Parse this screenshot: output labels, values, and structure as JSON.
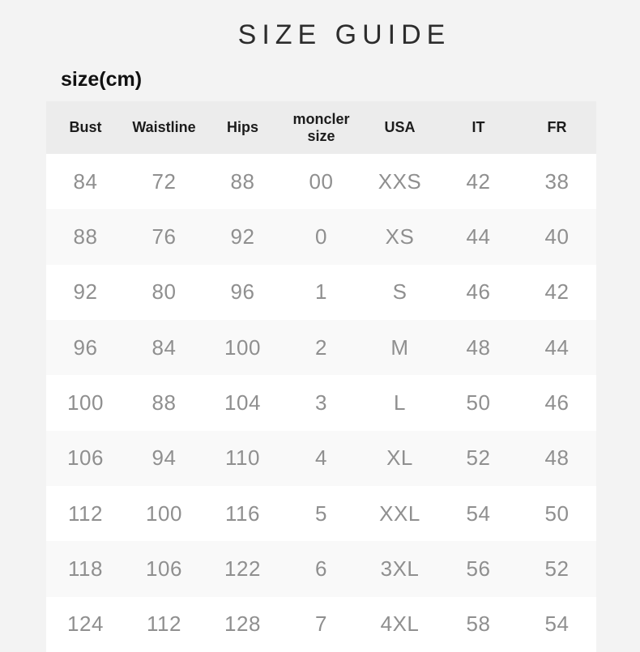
{
  "page": {
    "title": "SIZE GUIDE",
    "unit_label": "size(cm)"
  },
  "chart_data": {
    "type": "table",
    "title": "SIZE GUIDE",
    "subtitle": "size(cm)",
    "columns": [
      "Bust",
      "Waistline",
      "Hips",
      "moncler size",
      "USA",
      "IT",
      "FR"
    ],
    "rows": [
      [
        "84",
        "72",
        "88",
        "00",
        "XXS",
        "42",
        "38"
      ],
      [
        "88",
        "76",
        "92",
        "0",
        "XS",
        "44",
        "40"
      ],
      [
        "92",
        "80",
        "96",
        "1",
        "S",
        "46",
        "42"
      ],
      [
        "96",
        "84",
        "100",
        "2",
        "M",
        "48",
        "44"
      ],
      [
        "100",
        "88",
        "104",
        "3",
        "L",
        "50",
        "46"
      ],
      [
        "106",
        "94",
        "110",
        "4",
        "XL",
        "52",
        "48"
      ],
      [
        "112",
        "100",
        "116",
        "5",
        "XXL",
        "54",
        "50"
      ],
      [
        "118",
        "106",
        "122",
        "6",
        "3XL",
        "56",
        "52"
      ],
      [
        "124",
        "112",
        "128",
        "7",
        "4XL",
        "58",
        "54"
      ]
    ],
    "layout": {
      "header_background": "#ececec",
      "row_alternating": [
        "#ffffff",
        "#f9f9f9"
      ],
      "grid": "off",
      "alignment": "center"
    }
  },
  "colors": {
    "page_bg": "#f3f3f3",
    "header_bg": "#ececec",
    "row_odd_bg": "#ffffff",
    "row_even_bg": "#f9f9f9",
    "data_text": "#8f8f8f",
    "header_text": "#1c1c1c",
    "title_text": "#2c2c2c",
    "label_text": "#111111"
  }
}
